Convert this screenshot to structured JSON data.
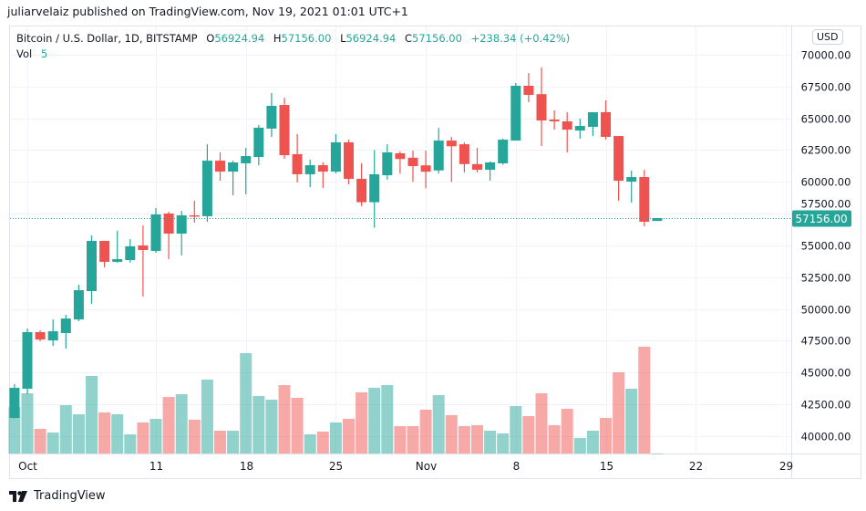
{
  "header": {
    "published": "juliarvelaiz published on TradingView.com, Nov 19, 2021 01:01 UTC+1"
  },
  "legend": {
    "symbol": "Bitcoin / U.S. Dollar, 1D, BITSTAMP",
    "open_label": "O",
    "open": "56924.94",
    "high_label": "H",
    "high": "57156.00",
    "low_label": "L",
    "low": "56924.94",
    "close_label": "C",
    "close": "57156.00",
    "change": "+238.34 (+0.42%)",
    "vol_label": "Vol",
    "vol": "5"
  },
  "price_axis": {
    "currency": "USD",
    "last_price_label": "57156.00"
  },
  "footer": {
    "brand": "TradingView"
  },
  "colors": {
    "up": "#26a69a",
    "down": "#ef5350",
    "grid": "#f0f3fa"
  },
  "chart_data": {
    "type": "candlestick",
    "title": "Bitcoin / U.S. Dollar, 1D, BITSTAMP",
    "ylim": [
      38500,
      71500
    ],
    "yticks": [
      "40000.00",
      "42500.00",
      "45000.00",
      "47500.00",
      "50000.00",
      "52500.00",
      "55000.00",
      "57500.00",
      "60000.00",
      "62500.00",
      "65000.00",
      "67500.00",
      "70000.00"
    ],
    "ytick_values": [
      40000,
      42500,
      45000,
      47500,
      50000,
      52500,
      55000,
      57500,
      60000,
      62500,
      65000,
      67500,
      70000
    ],
    "xticks": [
      {
        "label": "Oct",
        "date": "2021-10-01"
      },
      {
        "label": "11",
        "date": "2021-10-11"
      },
      {
        "label": "18",
        "date": "2021-10-18"
      },
      {
        "label": "25",
        "date": "2021-10-25"
      },
      {
        "label": "Nov",
        "date": "2021-11-01"
      },
      {
        "label": "8",
        "date": "2021-11-08"
      },
      {
        "label": "15",
        "date": "2021-11-15"
      },
      {
        "label": "22",
        "date": "2021-11-22"
      },
      {
        "label": "29",
        "date": "2021-11-29"
      }
    ],
    "last_price": 57156.0,
    "grid": true,
    "candles": [
      {
        "date": "2021-09-30",
        "o": 41430,
        "h": 44090,
        "l": 41400,
        "c": 43800,
        "v": 3060
      },
      {
        "date": "2021-10-01",
        "o": 43730,
        "h": 48470,
        "l": 43300,
        "c": 48180,
        "v": 3960
      },
      {
        "date": "2021-10-02",
        "o": 48180,
        "h": 48320,
        "l": 47460,
        "c": 47600,
        "v": 1620
      },
      {
        "date": "2021-10-03",
        "o": 47530,
        "h": 49180,
        "l": 47100,
        "c": 48250,
        "v": 1380
      },
      {
        "date": "2021-10-04",
        "o": 48110,
        "h": 49540,
        "l": 46890,
        "c": 49250,
        "v": 3180
      },
      {
        "date": "2021-10-05",
        "o": 49180,
        "h": 51910,
        "l": 49040,
        "c": 51480,
        "v": 2580
      },
      {
        "date": "2021-10-06",
        "o": 51410,
        "h": 55790,
        "l": 50400,
        "c": 55360,
        "v": 5100
      },
      {
        "date": "2021-10-07",
        "o": 55360,
        "h": 55360,
        "l": 53280,
        "c": 53710,
        "v": 2700
      },
      {
        "date": "2021-10-08",
        "o": 53710,
        "h": 56150,
        "l": 53640,
        "c": 53920,
        "v": 2580
      },
      {
        "date": "2021-10-09",
        "o": 53850,
        "h": 55500,
        "l": 53640,
        "c": 54930,
        "v": 1260
      },
      {
        "date": "2021-10-10",
        "o": 55000,
        "h": 56580,
        "l": 50980,
        "c": 54640,
        "v": 2040
      },
      {
        "date": "2021-10-11",
        "o": 54570,
        "h": 57940,
        "l": 54420,
        "c": 57440,
        "v": 2280
      },
      {
        "date": "2021-10-12",
        "o": 57510,
        "h": 57650,
        "l": 53920,
        "c": 55930,
        "v": 3720
      },
      {
        "date": "2021-10-13",
        "o": 55930,
        "h": 57720,
        "l": 54210,
        "c": 57370,
        "v": 3900
      },
      {
        "date": "2021-10-14",
        "o": 57370,
        "h": 58520,
        "l": 56790,
        "c": 57350,
        "v": 2220
      },
      {
        "date": "2021-10-15",
        "o": 57300,
        "h": 62960,
        "l": 56860,
        "c": 61670,
        "v": 4860
      },
      {
        "date": "2021-10-16",
        "o": 61670,
        "h": 62320,
        "l": 60090,
        "c": 60810,
        "v": 1500
      },
      {
        "date": "2021-10-17",
        "o": 60810,
        "h": 61670,
        "l": 58950,
        "c": 61530,
        "v": 1500
      },
      {
        "date": "2021-10-18",
        "o": 61460,
        "h": 62680,
        "l": 59020,
        "c": 62030,
        "v": 6600
      },
      {
        "date": "2021-10-19",
        "o": 61960,
        "h": 64470,
        "l": 61310,
        "c": 64260,
        "v": 3780
      },
      {
        "date": "2021-10-20",
        "o": 64190,
        "h": 66990,
        "l": 63540,
        "c": 65980,
        "v": 3540
      },
      {
        "date": "2021-10-21",
        "o": 66050,
        "h": 66630,
        "l": 61820,
        "c": 62100,
        "v": 4500
      },
      {
        "date": "2021-10-22",
        "o": 62180,
        "h": 63760,
        "l": 59950,
        "c": 60600,
        "v": 3660
      },
      {
        "date": "2021-10-23",
        "o": 60600,
        "h": 61750,
        "l": 59590,
        "c": 61310,
        "v": 1260
      },
      {
        "date": "2021-10-24",
        "o": 61310,
        "h": 61530,
        "l": 59520,
        "c": 60810,
        "v": 1440
      },
      {
        "date": "2021-10-25",
        "o": 60810,
        "h": 63760,
        "l": 60670,
        "c": 63110,
        "v": 2040
      },
      {
        "date": "2021-10-26",
        "o": 63110,
        "h": 63320,
        "l": 59810,
        "c": 60240,
        "v": 2280
      },
      {
        "date": "2021-10-27",
        "o": 60240,
        "h": 61460,
        "l": 58100,
        "c": 58400,
        "v": 4020
      },
      {
        "date": "2021-10-28",
        "o": 58400,
        "h": 62500,
        "l": 56400,
        "c": 60600,
        "v": 4320
      },
      {
        "date": "2021-10-29",
        "o": 60520,
        "h": 62960,
        "l": 60170,
        "c": 62320,
        "v": 4500
      },
      {
        "date": "2021-10-30",
        "o": 62250,
        "h": 62400,
        "l": 60650,
        "c": 61800,
        "v": 1800
      },
      {
        "date": "2021-10-31",
        "o": 61900,
        "h": 62460,
        "l": 60000,
        "c": 61240,
        "v": 1800
      },
      {
        "date": "2021-11-01",
        "o": 61300,
        "h": 62460,
        "l": 59500,
        "c": 60800,
        "v": 2880
      },
      {
        "date": "2021-11-02",
        "o": 60900,
        "h": 64250,
        "l": 60650,
        "c": 63250,
        "v": 3840
      },
      {
        "date": "2021-11-03",
        "o": 63250,
        "h": 63540,
        "l": 60000,
        "c": 62800,
        "v": 2520
      },
      {
        "date": "2021-11-04",
        "o": 62960,
        "h": 63100,
        "l": 60740,
        "c": 61400,
        "v": 1800
      },
      {
        "date": "2021-11-05",
        "o": 61400,
        "h": 62680,
        "l": 60740,
        "c": 60950,
        "v": 1860
      },
      {
        "date": "2021-11-06",
        "o": 60950,
        "h": 61600,
        "l": 60100,
        "c": 61530,
        "v": 1500
      },
      {
        "date": "2021-11-07",
        "o": 61460,
        "h": 63400,
        "l": 61350,
        "c": 63320,
        "v": 1320
      },
      {
        "date": "2021-11-08",
        "o": 63250,
        "h": 67780,
        "l": 63250,
        "c": 67560,
        "v": 3120
      },
      {
        "date": "2021-11-09",
        "o": 67560,
        "h": 68560,
        "l": 66270,
        "c": 66840,
        "v": 2460
      },
      {
        "date": "2021-11-10",
        "o": 66900,
        "h": 69000,
        "l": 62820,
        "c": 64830,
        "v": 3960
      },
      {
        "date": "2021-11-11",
        "o": 64900,
        "h": 65620,
        "l": 64110,
        "c": 64760,
        "v": 1860
      },
      {
        "date": "2021-11-12",
        "o": 64760,
        "h": 65480,
        "l": 62320,
        "c": 64110,
        "v": 2940
      },
      {
        "date": "2021-11-13",
        "o": 64040,
        "h": 64970,
        "l": 63400,
        "c": 64400,
        "v": 1020
      },
      {
        "date": "2021-11-14",
        "o": 64330,
        "h": 65480,
        "l": 63610,
        "c": 65480,
        "v": 1500
      },
      {
        "date": "2021-11-15",
        "o": 65480,
        "h": 66410,
        "l": 63330,
        "c": 63540,
        "v": 2340
      },
      {
        "date": "2021-11-16",
        "o": 63610,
        "h": 63610,
        "l": 58520,
        "c": 60090,
        "v": 5340
      },
      {
        "date": "2021-11-17",
        "o": 60020,
        "h": 60880,
        "l": 58370,
        "c": 60380,
        "v": 4260
      },
      {
        "date": "2021-11-18",
        "o": 60380,
        "h": 60950,
        "l": 56500,
        "c": 56860,
        "v": 7020
      },
      {
        "date": "2021-11-19",
        "o": 56924.94,
        "h": 57156.0,
        "l": 56924.94,
        "c": 57156.0,
        "v": 5
      }
    ]
  }
}
